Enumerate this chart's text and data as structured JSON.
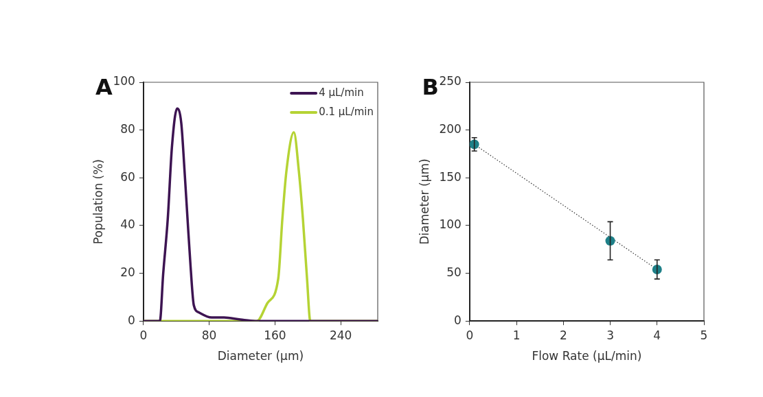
{
  "chart_data": [
    {
      "type": "line",
      "title": "A",
      "xlabel": "Diameter (µm)",
      "ylabel": "Population (%)",
      "xlim": [
        0,
        285
      ],
      "xticks": [
        0,
        80,
        160,
        240
      ],
      "ylim": [
        0,
        100
      ],
      "yticks": [
        0,
        20,
        40,
        60,
        80,
        100
      ],
      "grid": false,
      "legend": "top right",
      "marker": "none",
      "series": [
        {
          "name": "4 µL/min",
          "color": "#3d1452",
          "x": [
            0,
            20,
            24,
            29.6,
            34.7,
            41,
            46,
            50,
            53.6,
            57.4,
            61.3,
            67.6,
            83,
            98,
            118,
            136,
            285
          ],
          "values": [
            0,
            0,
            19.6,
            42.8,
            73,
            89,
            83,
            63,
            43,
            22.6,
            6.6,
            3.6,
            1.5,
            1.5,
            0.6,
            0,
            0
          ]
        },
        {
          "name": "0.1 µL/min",
          "color": "#b5d334",
          "x": [
            0,
            138,
            151,
            164,
            169,
            174,
            183,
            189,
            194,
            199,
            203,
            285
          ],
          "values": [
            0,
            0,
            7.6,
            17.8,
            42.8,
            63,
            79,
            63,
            42.8,
            17.8,
            0,
            0
          ]
        }
      ]
    },
    {
      "type": "scatter",
      "title": "B",
      "xlabel": "Flow Rate (µL/min)",
      "ylabel": "Diameter (µm)",
      "xlim": [
        0,
        5
      ],
      "xticks": [
        0,
        1,
        2,
        3,
        4,
        5
      ],
      "ylim": [
        0,
        250
      ],
      "yticks": [
        0,
        50,
        100,
        150,
        200,
        250
      ],
      "grid": false,
      "marker": "circle",
      "series": [
        {
          "color": "#1e8088",
          "x": [
            0.1,
            3,
            4
          ],
          "values": [
            185,
            84,
            54
          ],
          "errors": [
            7,
            20,
            10
          ]
        },
        {
          "type": "line",
          "color": "#333333",
          "x": [
            0.1,
            4
          ],
          "values": [
            185,
            54
          ],
          "line_style": "dotted",
          "marker": "none"
        }
      ]
    }
  ]
}
